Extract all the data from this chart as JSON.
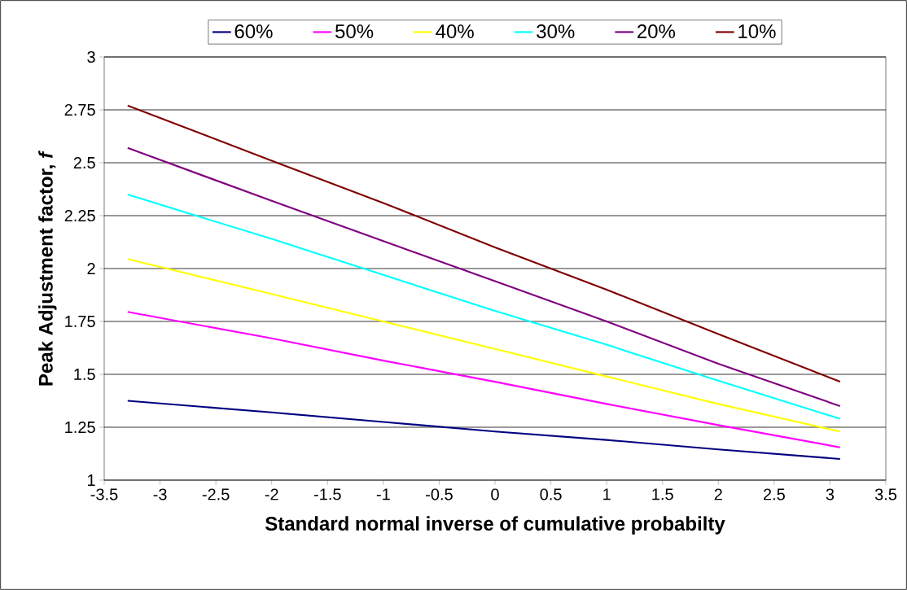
{
  "chart_data": {
    "type": "line",
    "xlabel": "Standard normal inverse of cumulative probabilty",
    "ylabel": "Peak Adjustment factor, *f*",
    "x": [
      -3.29,
      -2,
      -1,
      0,
      1,
      2,
      3.09
    ],
    "series": [
      {
        "name": "60%",
        "color": "#000080",
        "values": [
          1.375,
          1.32,
          1.275,
          1.23,
          1.19,
          1.145,
          1.1
        ]
      },
      {
        "name": "50%",
        "color": "#ff00ff",
        "values": [
          1.795,
          1.67,
          1.565,
          1.465,
          1.36,
          1.26,
          1.155
        ]
      },
      {
        "name": "40%",
        "color": "#ffff00",
        "values": [
          2.045,
          1.88,
          1.75,
          1.62,
          1.49,
          1.36,
          1.23
        ]
      },
      {
        "name": "30%",
        "color": "#00ffff",
        "values": [
          2.35,
          2.14,
          1.97,
          1.8,
          1.64,
          1.47,
          1.29
        ]
      },
      {
        "name": "20%",
        "color": "#800080",
        "values": [
          2.57,
          2.32,
          2.13,
          1.94,
          1.75,
          1.55,
          1.35
        ]
      },
      {
        "name": "10%",
        "color": "#800000",
        "values": [
          2.77,
          2.51,
          2.31,
          2.1,
          1.9,
          1.69,
          1.465
        ]
      }
    ],
    "xlim": [
      -3.5,
      3.5
    ],
    "xticks": [
      -3.5,
      -3,
      -2.5,
      -2,
      -1.5,
      -1,
      -0.5,
      0,
      0.5,
      1,
      1.5,
      2,
      2.5,
      3,
      3.5
    ],
    "ylim": [
      1,
      3
    ],
    "yticks": [
      1,
      1.25,
      1.5,
      1.75,
      2,
      2.25,
      2.5,
      2.75,
      3
    ],
    "grid": "y",
    "legend": "top",
    "marker": "none",
    "line_style": "solid"
  }
}
